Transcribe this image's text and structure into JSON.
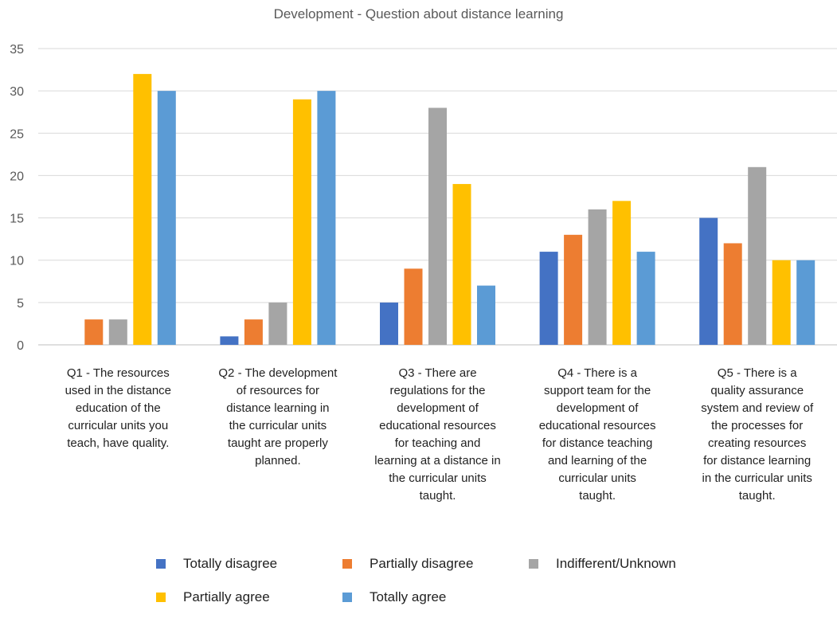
{
  "chart_data": {
    "type": "bar",
    "title": "Development - Question about distance learning",
    "xlabel": "",
    "ylabel": "",
    "ylim": [
      0,
      35
    ],
    "yticks": [
      0,
      5,
      10,
      15,
      20,
      25,
      30,
      35
    ],
    "grid": true,
    "legend_position": "bottom",
    "categories": [
      "Q1 - The resources used in the distance education of the curricular units you teach, have quality.",
      "Q2 - The development of resources for distance learning in the curricular units taught are properly planned.",
      "Q3 - There are regulations for the development of educational resources for teaching and learning at a distance in the curricular units taught.",
      "Q4 - There is a support team for the development of educational resources for distance teaching and learning of the curricular units taught.",
      "Q5 - There is a quality assurance system and review of the processes for creating resources for distance learning in the curricular units taught."
    ],
    "category_lines": [
      [
        "Q1 - The resources",
        "used in the distance",
        "education of the",
        "curricular units you",
        "teach, have quality."
      ],
      [
        "Q2 - The development",
        "of resources for",
        "distance learning in",
        "the curricular units",
        "taught are properly",
        "planned."
      ],
      [
        "Q3 - There are",
        "regulations for the",
        "development of",
        "educational resources",
        "for teaching and",
        "learning at a distance in",
        "the curricular units",
        "taught."
      ],
      [
        "Q4 - There is a",
        "support team for the",
        "development of",
        "educational resources",
        "for distance teaching",
        "and learning of the",
        "curricular units",
        "taught."
      ],
      [
        "Q5 - There is a",
        "quality assurance",
        "system and review of",
        "the processes for",
        "creating resources",
        "for distance learning",
        "in the curricular units",
        "taught."
      ]
    ],
    "series": [
      {
        "name": "Totally disagree",
        "color": "#4472c4",
        "values": [
          0,
          1,
          5,
          11,
          15
        ]
      },
      {
        "name": "Partially disagree",
        "color": "#ed7d31",
        "values": [
          3,
          3,
          9,
          13,
          12
        ]
      },
      {
        "name": "Indifferent/Unknown",
        "color": "#a5a5a5",
        "values": [
          3,
          5,
          28,
          16,
          21
        ]
      },
      {
        "name": "Partially agree",
        "color": "#ffc000",
        "values": [
          32,
          29,
          19,
          17,
          10
        ]
      },
      {
        "name": "Totally agree",
        "color": "#5b9bd5",
        "values": [
          30,
          30,
          7,
          11,
          10
        ]
      }
    ]
  }
}
